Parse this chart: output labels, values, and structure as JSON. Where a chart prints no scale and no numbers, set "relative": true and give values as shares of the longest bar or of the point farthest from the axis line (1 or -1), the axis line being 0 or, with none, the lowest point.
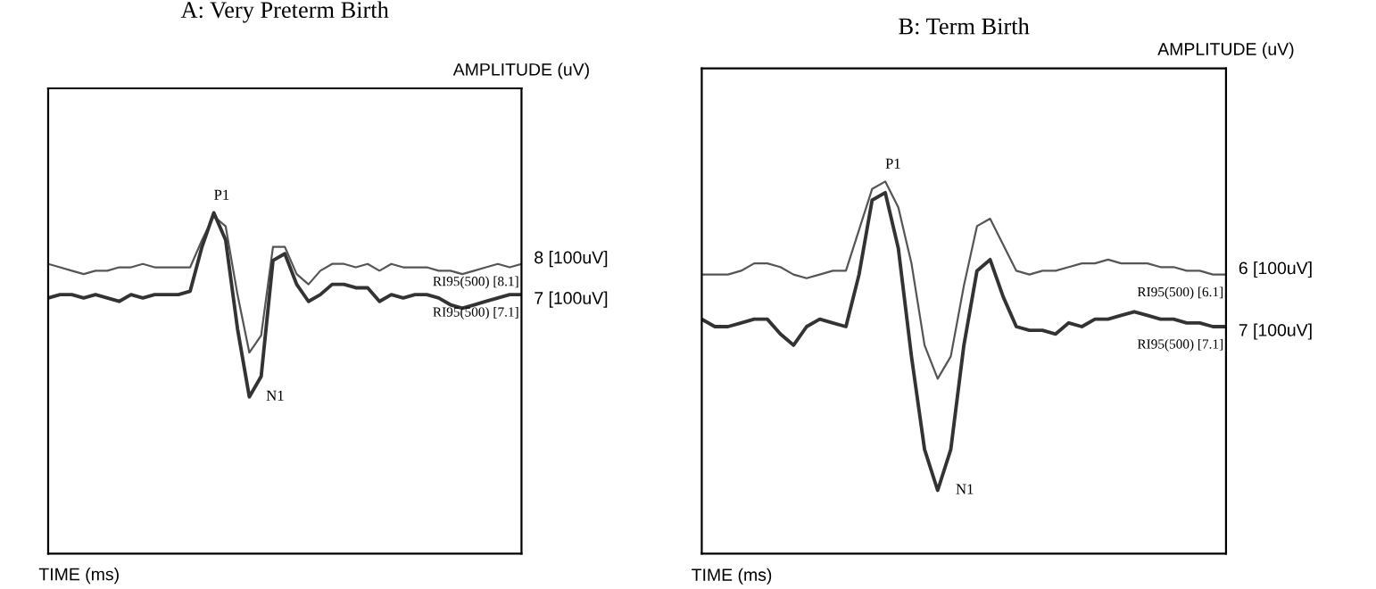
{
  "chart_data": [
    {
      "type": "line",
      "relative": true,
      "title": "A: Very Preterm Birth",
      "xlabel": "TIME (ms)",
      "ylabel": "AMPLITUDE (uV)",
      "categories": [
        null,
        null,
        null,
        null,
        null,
        null,
        null,
        null,
        null,
        null,
        null,
        null,
        null,
        null,
        null,
        null,
        null,
        null,
        null,
        null,
        null,
        null,
        null,
        null,
        null,
        null,
        null,
        null,
        null,
        null,
        null,
        null,
        null,
        null,
        null,
        null,
        null,
        null,
        null,
        null,
        null
      ],
      "series": [
        {
          "name": "8 [100uV]",
          "color": "#555555",
          "values": [
            0.85,
            0.84,
            0.83,
            0.82,
            0.83,
            0.83,
            0.84,
            0.84,
            0.85,
            0.84,
            0.84,
            0.84,
            0.84,
            0.92,
            0.99,
            0.96,
            0.76,
            0.59,
            0.64,
            0.9,
            0.9,
            0.82,
            0.79,
            0.83,
            0.85,
            0.85,
            0.84,
            0.85,
            0.83,
            0.85,
            0.84,
            0.84,
            0.84,
            0.83,
            0.83,
            0.82,
            0.83,
            0.84,
            0.85,
            0.84,
            0.85
          ]
        },
        {
          "name": "7 [100uV]",
          "color": "#333333",
          "values": [
            0.75,
            0.76,
            0.76,
            0.75,
            0.76,
            0.75,
            0.74,
            0.76,
            0.75,
            0.76,
            0.76,
            0.76,
            0.77,
            0.9,
            1.0,
            0.92,
            0.66,
            0.46,
            0.52,
            0.86,
            0.88,
            0.79,
            0.74,
            0.76,
            0.79,
            0.79,
            0.78,
            0.78,
            0.74,
            0.76,
            0.75,
            0.76,
            0.76,
            0.75,
            0.73,
            0.72,
            0.73,
            0.74,
            0.75,
            0.76,
            0.76
          ]
        }
      ],
      "annotations": [
        "P1",
        "N1",
        "RI95(500) [8.1]",
        "RI95(500) [7.1]"
      ]
    },
    {
      "type": "line",
      "relative": true,
      "title": "B: Term Birth",
      "xlabel": "TIME (ms)",
      "ylabel": "AMPLITUDE (uV)",
      "categories": [
        null,
        null,
        null,
        null,
        null,
        null,
        null,
        null,
        null,
        null,
        null,
        null,
        null,
        null,
        null,
        null,
        null,
        null,
        null,
        null,
        null,
        null,
        null,
        null,
        null,
        null,
        null,
        null,
        null,
        null,
        null,
        null,
        null,
        null,
        null,
        null,
        null,
        null,
        null,
        null,
        null
      ],
      "series": [
        {
          "name": "6 [100uV]",
          "color": "#555555",
          "values": [
            0.75,
            0.75,
            0.75,
            0.76,
            0.78,
            0.78,
            0.77,
            0.75,
            0.74,
            0.75,
            0.76,
            0.76,
            0.87,
            0.98,
            1.0,
            0.93,
            0.78,
            0.56,
            0.47,
            0.53,
            0.72,
            0.88,
            0.9,
            0.83,
            0.76,
            0.75,
            0.76,
            0.76,
            0.77,
            0.78,
            0.78,
            0.79,
            0.78,
            0.78,
            0.78,
            0.77,
            0.77,
            0.76,
            0.76,
            0.75,
            0.75
          ]
        },
        {
          "name": "7 [100uV]",
          "color": "#333333",
          "values": [
            0.63,
            0.61,
            0.61,
            0.62,
            0.63,
            0.63,
            0.59,
            0.56,
            0.61,
            0.63,
            0.62,
            0.61,
            0.75,
            0.95,
            0.97,
            0.82,
            0.53,
            0.28,
            0.17,
            0.28,
            0.56,
            0.76,
            0.79,
            0.69,
            0.61,
            0.6,
            0.6,
            0.59,
            0.62,
            0.61,
            0.63,
            0.63,
            0.64,
            0.65,
            0.64,
            0.63,
            0.63,
            0.62,
            0.62,
            0.61,
            0.61
          ]
        }
      ],
      "annotations": [
        "P1",
        "N1",
        "RI95(500) [6.1]",
        "RI95(500) [7.1]"
      ]
    }
  ]
}
